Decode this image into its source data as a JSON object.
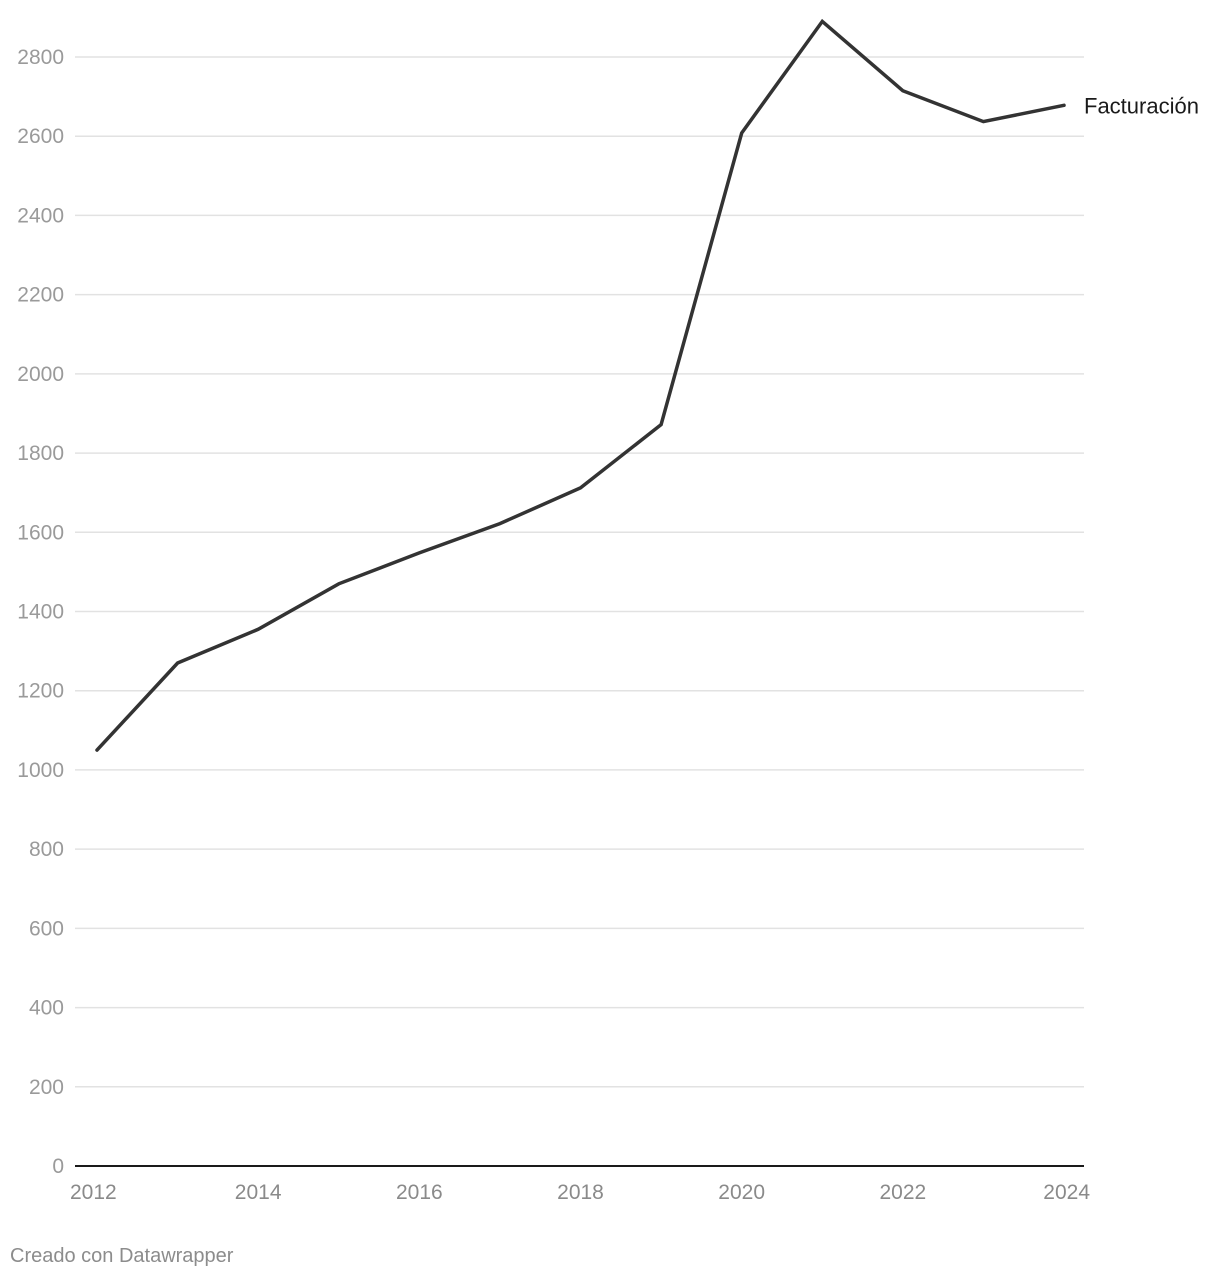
{
  "chart_data": {
    "type": "line",
    "title": "",
    "xlabel": "",
    "ylabel": "",
    "x": [
      2012,
      2013,
      2014,
      2015,
      2016,
      2017,
      2018,
      2019,
      2020,
      2021,
      2022,
      2023,
      2024
    ],
    "x_ticks": [
      "2012",
      "2014",
      "2016",
      "2018",
      "2020",
      "2022",
      "2024"
    ],
    "y_ticks": [
      "0",
      "200",
      "400",
      "600",
      "800",
      "1000",
      "1200",
      "1400",
      "1600",
      "1800",
      "2000",
      "2200",
      "2400",
      "2600",
      "2800"
    ],
    "ylim": [
      0,
      2800
    ],
    "xlim": [
      2012,
      2024
    ],
    "grid": true,
    "series": [
      {
        "name": "Facturación",
        "color": "#333333",
        "values": [
          1050,
          1270,
          1355,
          1470,
          1548,
          1622,
          1712,
          1872,
          2608,
          2890,
          2715,
          2637,
          2678
        ]
      }
    ]
  },
  "footer": {
    "credit": "Creado con Datawrapper"
  },
  "colors": {
    "line": "#333333",
    "grid": "#e2e2e2",
    "axis": "#1a1a1a",
    "tick_label": "#9a9a9a",
    "x_tick_label": "#8a8a8a",
    "series_label": "#1a1a1a"
  }
}
